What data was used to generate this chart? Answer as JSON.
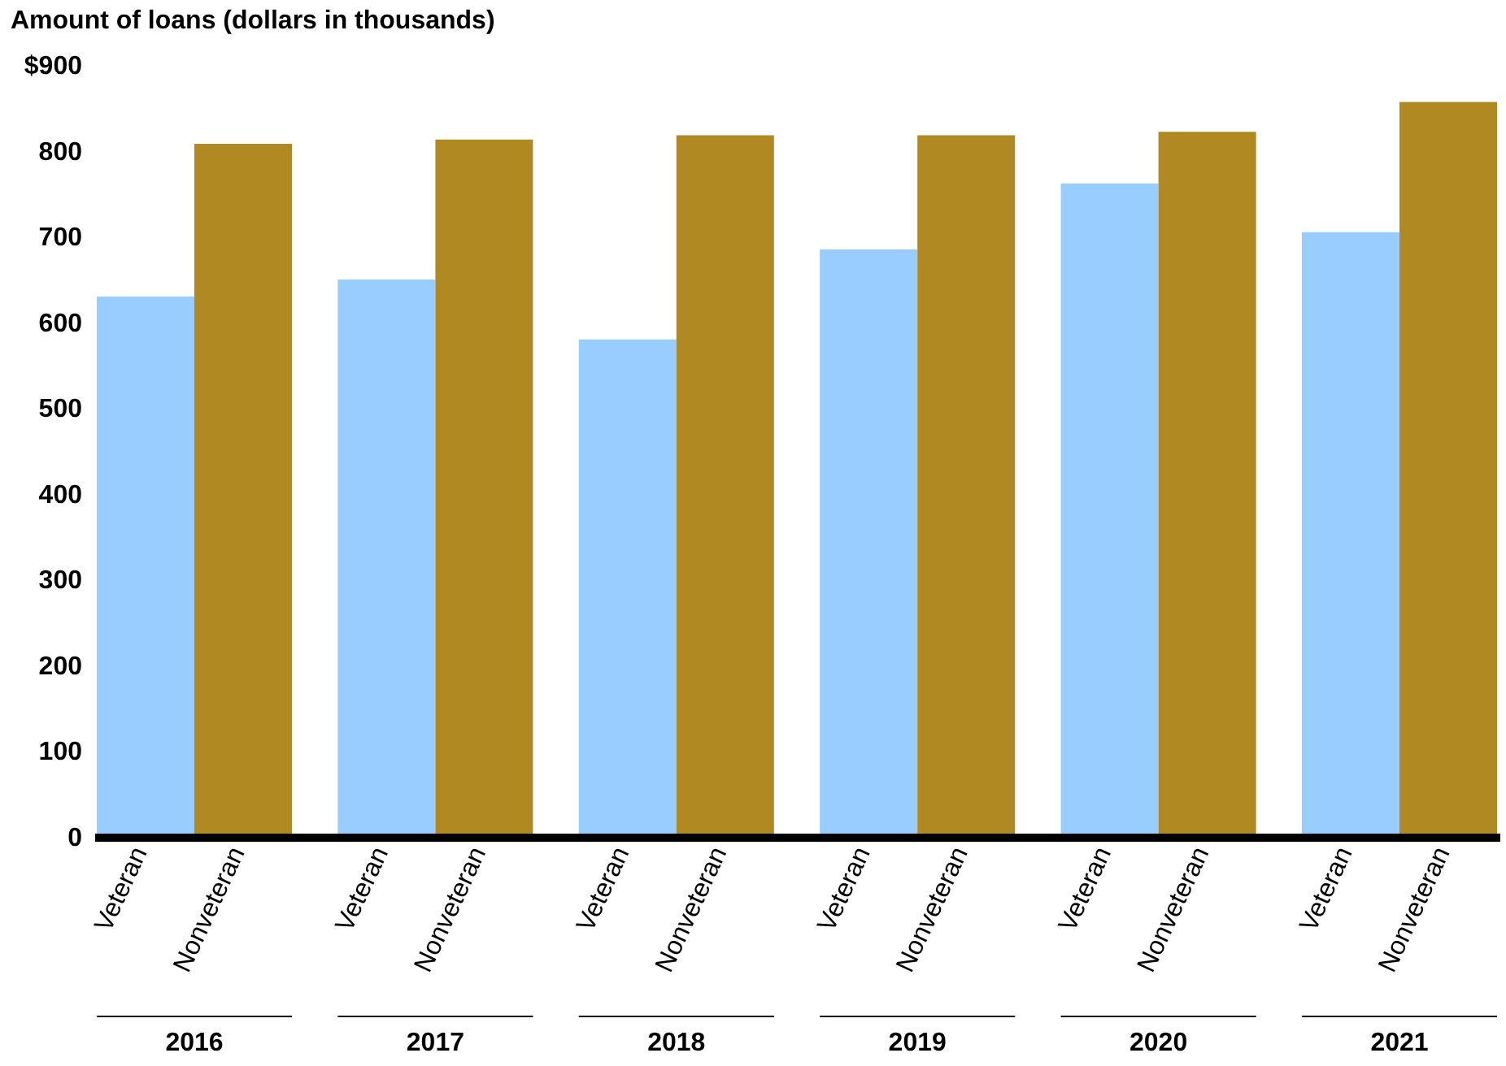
{
  "chart_data": {
    "type": "bar",
    "ylabel": "Amount of loans (dollars in thousands)",
    "categories": [
      "2016",
      "2017",
      "2018",
      "2019",
      "2020",
      "2021"
    ],
    "series": [
      {
        "name": "Veteran",
        "color": "#99ccff",
        "values": [
          630,
          650,
          580,
          685,
          762,
          705
        ]
      },
      {
        "name": "Nonveteran",
        "color": "#b08923",
        "values": [
          808,
          813,
          818,
          818,
          822,
          857
        ]
      }
    ],
    "ylim": [
      0,
      900
    ],
    "yticks": [
      0,
      100,
      200,
      300,
      400,
      500,
      600,
      700,
      800,
      {
        "value": 900,
        "label": "$900"
      }
    ],
    "grid": false,
    "legend": false
  }
}
